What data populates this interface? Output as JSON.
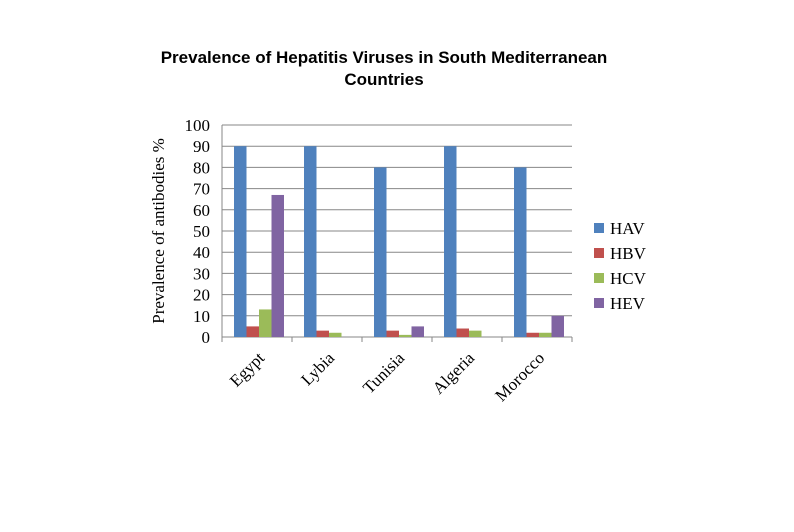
{
  "chart_data": {
    "type": "bar",
    "title_lines": [
      "Prevalence of Hepatitis Viruses in South Mediterranean",
      "Countries"
    ],
    "ylabel": "Prevalence of antibodies  %",
    "xlabel": "",
    "ylim": [
      0,
      100
    ],
    "yticks": [
      0,
      10,
      20,
      30,
      40,
      50,
      60,
      70,
      80,
      90,
      100
    ],
    "categories": [
      "Egypt",
      "Lybia",
      "Tunisia",
      "Algeria",
      "Morocco"
    ],
    "series": [
      {
        "name": "HAV",
        "color": "#4F81BD",
        "values": [
          90,
          90,
          80,
          90,
          80
        ]
      },
      {
        "name": "HBV",
        "color": "#C0504D",
        "values": [
          5,
          3,
          3,
          4,
          2
        ]
      },
      {
        "name": "HCV",
        "color": "#9BBB59",
        "values": [
          13,
          2,
          1,
          3,
          2
        ]
      },
      {
        "name": "HEV",
        "color": "#8064A2",
        "values": [
          67,
          0,
          5,
          0,
          10
        ]
      }
    ],
    "grid": true,
    "legend_position": "right"
  }
}
